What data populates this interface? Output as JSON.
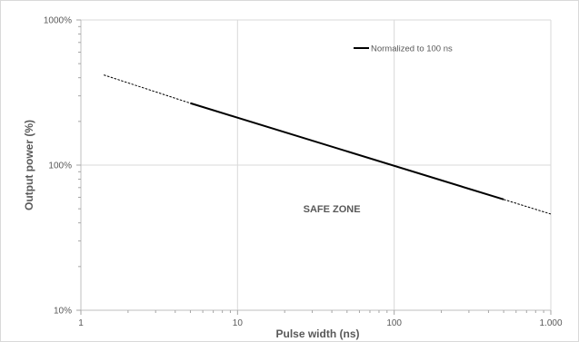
{
  "chart_data": {
    "type": "line",
    "title": "",
    "xlabel": "Pulse width (ns)",
    "ylabel": "Output power (%)",
    "x_scale": "log",
    "y_scale": "log",
    "xlim": [
      1,
      1000
    ],
    "ylim": [
      10,
      1000
    ],
    "x_ticks": [
      {
        "value": 1,
        "label": "1"
      },
      {
        "value": 10,
        "label": "10"
      },
      {
        "value": 100,
        "label": "100"
      },
      {
        "value": 1000,
        "label": "1.000"
      }
    ],
    "y_ticks": [
      {
        "value": 10,
        "label": "10%"
      },
      {
        "value": 100,
        "label": "100%"
      },
      {
        "value": 1000,
        "label": "1000%"
      }
    ],
    "grid": true,
    "legend_position": "top-right",
    "series": [
      {
        "name": "Normalized to 100 ns",
        "color": "#000000",
        "style": "solid",
        "x": [
          5,
          500
        ],
        "y": [
          267,
          58
        ]
      }
    ],
    "extrapolations": [
      {
        "color": "#000000",
        "style": "dashed",
        "x": [
          1.4,
          5
        ],
        "y": [
          418,
          267
        ]
      },
      {
        "color": "#000000",
        "style": "dashed",
        "x": [
          500,
          1000
        ],
        "y": [
          58,
          46
        ]
      }
    ],
    "annotations": [
      {
        "text": "SAFE ZONE",
        "x": 40,
        "y": 50
      }
    ]
  }
}
